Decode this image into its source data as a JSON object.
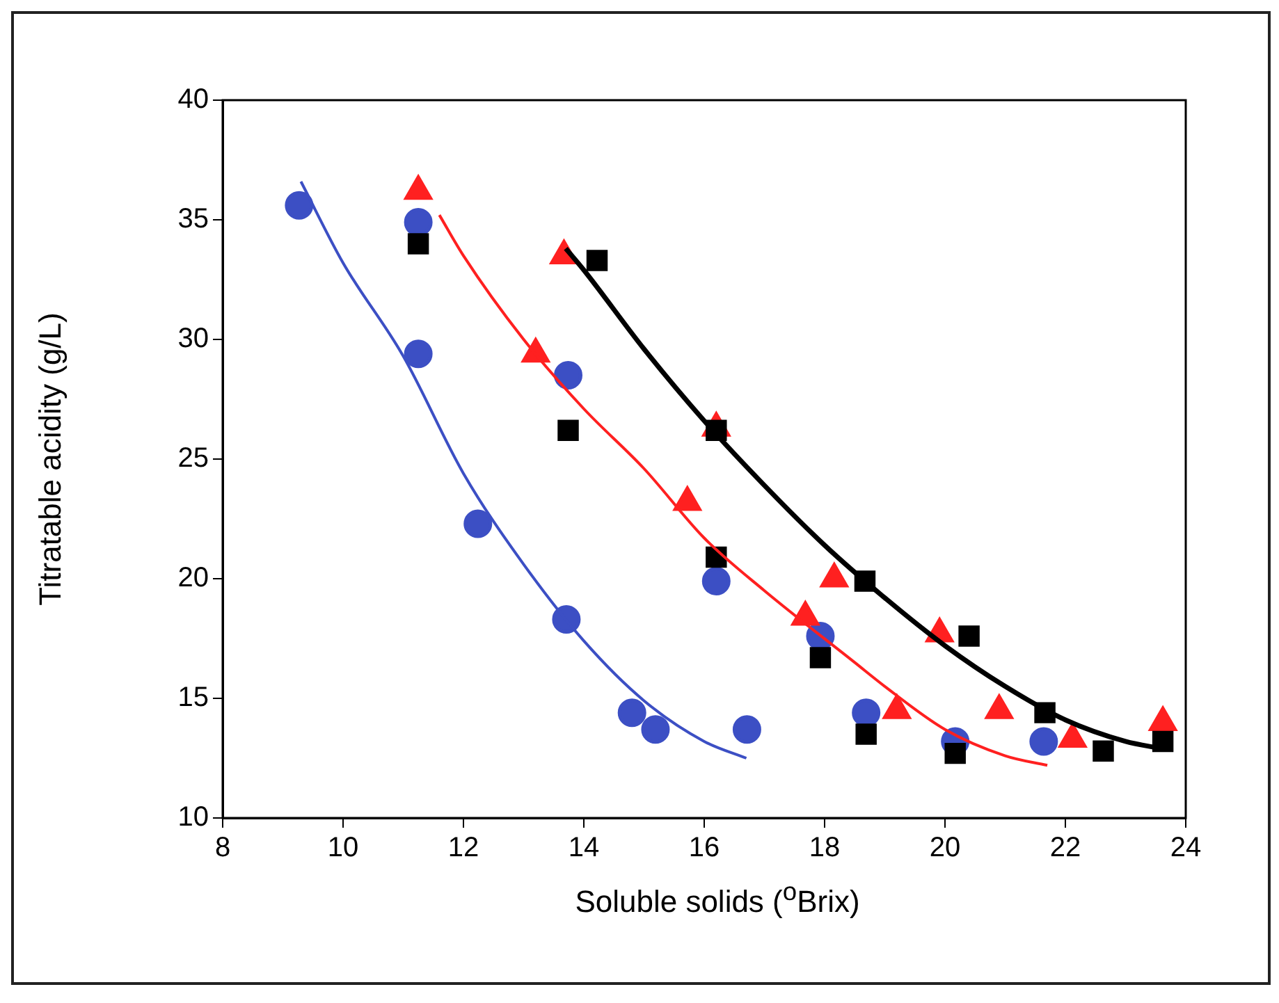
{
  "chart_data": {
    "type": "scatter",
    "xlabel": "Soluble solids ($^{o}$Brix)",
    "ylabel": "Titratable acidity (g/L)",
    "xlim": [
      8,
      24
    ],
    "xticks": [
      8,
      10,
      12,
      14,
      16,
      18,
      20,
      22,
      24
    ],
    "ylim": [
      10,
      40
    ],
    "yticks": [
      10,
      15,
      20,
      25,
      30,
      35,
      40
    ],
    "grid": false,
    "legend": false,
    "series": [
      {
        "marker": "circle",
        "color": "#3c4fc4",
        "x": [
          9.27,
          11.25,
          12.24,
          13.71,
          14.8,
          15.19,
          16.71
        ],
        "values": [
          35.6,
          29.4,
          22.3,
          18.3,
          14.4,
          13.7,
          13.7
        ]
      },
      {
        "marker": "circle",
        "color": "#3c4fc4",
        "x": [
          11.25,
          13.74,
          16.2,
          17.93,
          18.69,
          20.17,
          21.64
        ],
        "values": [
          34.9,
          28.5,
          19.9,
          17.6,
          14.4,
          13.2,
          13.2
        ]
      },
      {
        "marker": "square",
        "color": "#000000",
        "x": [
          11.25,
          13.74,
          16.2,
          17.93,
          18.69,
          20.17
        ],
        "values": [
          34.0,
          26.2,
          20.9,
          16.7,
          13.5,
          12.7
        ]
      },
      {
        "marker": "triangle",
        "color": "#ff2020",
        "x": [
          11.25,
          13.2,
          15.72,
          17.68,
          19.2
        ],
        "values": [
          36.2,
          29.4,
          23.2,
          18.4,
          14.5
        ]
      },
      {
        "marker": "triangle",
        "color": "#ff2020",
        "x": [
          13.67,
          16.2,
          18.16,
          19.91,
          20.9,
          22.12,
          23.62
        ],
        "values": [
          33.5,
          26.3,
          20.0,
          17.7,
          14.5,
          13.3,
          14.0
        ]
      },
      {
        "marker": "square",
        "color": "#000000",
        "x": [
          14.22,
          16.2,
          18.67,
          20.4,
          21.66,
          22.63,
          23.62
        ],
        "values": [
          33.3,
          26.2,
          19.9,
          17.6,
          14.4,
          12.8,
          13.2
        ]
      },
      {
        "type": "line",
        "marker": "none",
        "color": "#3c4fc4",
        "x": [
          9.3,
          10,
          11,
          12,
          13,
          14,
          15,
          16,
          16.7
        ],
        "values": [
          36.6,
          33.2,
          29.3,
          24.4,
          20.6,
          17.4,
          14.9,
          13.2,
          12.5
        ]
      },
      {
        "type": "line",
        "marker": "none",
        "color": "#ff2020",
        "x": [
          11.6,
          12,
          13,
          14,
          15,
          16,
          17,
          18.5,
          19,
          20,
          21,
          21.7
        ],
        "values": [
          35.2,
          33.5,
          30.0,
          27.1,
          24.6,
          21.7,
          19.5,
          16.5,
          15.5,
          13.7,
          12.6,
          12.2
        ]
      },
      {
        "type": "line",
        "marker": "none",
        "color": "#000000",
        "x": [
          13.7,
          14,
          15,
          16,
          17,
          18,
          19,
          20,
          21,
          22,
          23,
          23.6
        ],
        "values": [
          33.8,
          32.9,
          29.6,
          26.6,
          23.9,
          21.4,
          19.2,
          17.2,
          15.5,
          14.1,
          13.2,
          12.9
        ]
      }
    ]
  }
}
